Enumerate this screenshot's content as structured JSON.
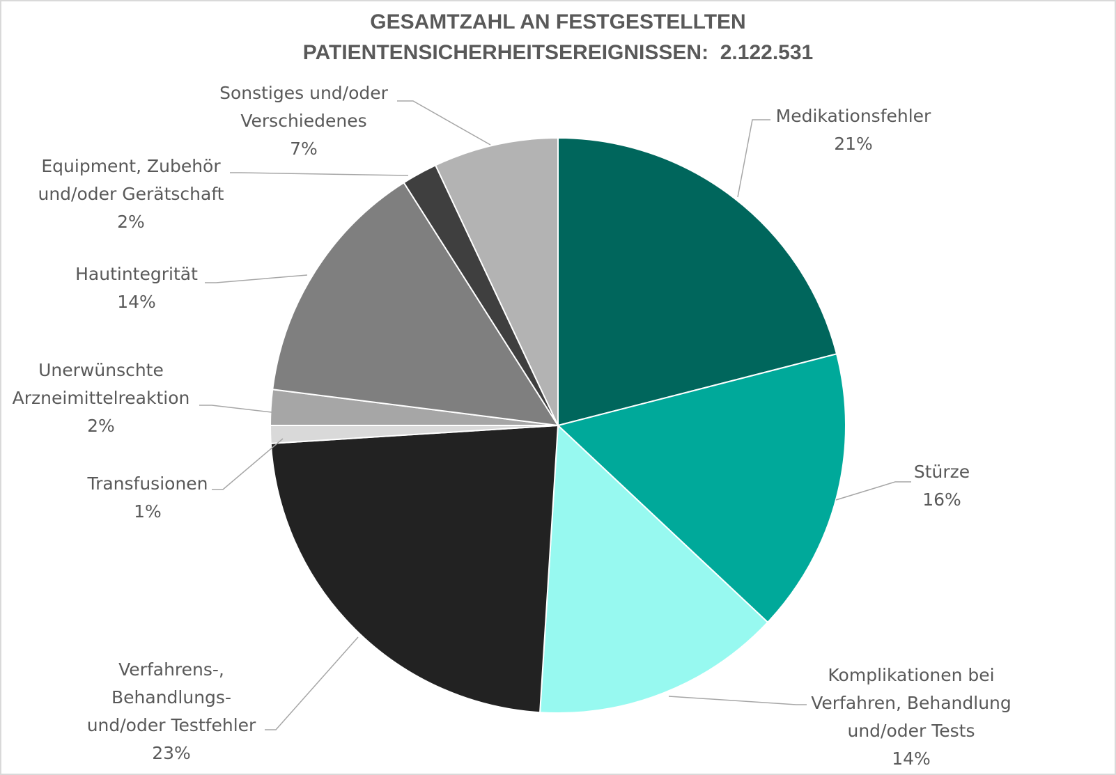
{
  "chart_data": {
    "type": "pie",
    "title_line1": "GESAMTZAHL AN FESTGESTELLTEN",
    "title_line2": "PATIENTENSICHERHEITSEREIGNISSEN:  2.122.531",
    "slices": [
      {
        "label": "Medikationsfehler",
        "value": 21,
        "pct": "21%",
        "color": "#00665c"
      },
      {
        "label": "Stürze",
        "value": 16,
        "pct": "16%",
        "color": "#00a99a"
      },
      {
        "label": "Komplikationen bei Verfahren, Behandlung und/oder Tests",
        "value": 14,
        "pct": "14%",
        "color": "#97f9f0"
      },
      {
        "label": "Verfahrens-, Behandlungs- und/oder Testfehler",
        "value": 23,
        "pct": "23%",
        "color": "#222222"
      },
      {
        "label": "Transfusionen",
        "value": 1,
        "pct": "1%",
        "color": "#d9d9d9"
      },
      {
        "label": "Unerwünschte Arzneimittelreaktion",
        "value": 2,
        "pct": "2%",
        "color": "#a6a6a6"
      },
      {
        "label": "Hautintegrität",
        "value": 14,
        "pct": "14%",
        "color": "#7f7f7f"
      },
      {
        "label": "Equipment, Zubehör und/oder Gerätschaft",
        "value": 2,
        "pct": "2%",
        "color": "#3f3f3f"
      },
      {
        "label": "Sonstiges und/oder Verschiedenes",
        "value": 7,
        "pct": "7%",
        "color": "#b3b3b3"
      }
    ]
  }
}
